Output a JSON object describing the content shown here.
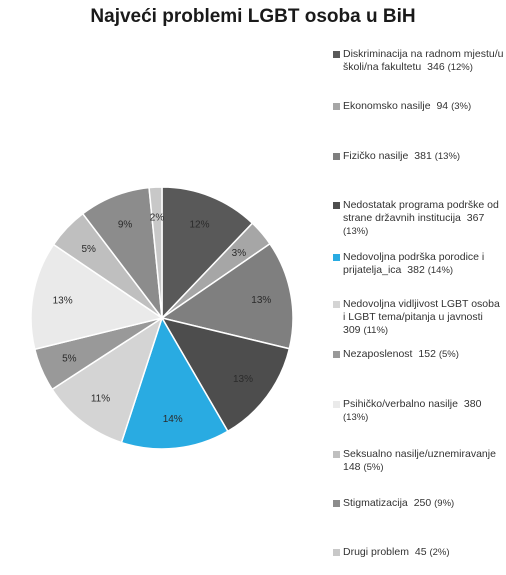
{
  "chart_data": {
    "type": "pie",
    "title": "Najveći problemi LGBT osoba u BiH",
    "slices": [
      {
        "label": "Diskriminacija na radnom mjestu/u školi/na fakultetu",
        "value": 346,
        "percent_label": "(12%)",
        "slice_label": "12%",
        "color": "#595959"
      },
      {
        "label": "Ekonomsko nasilje",
        "value": 94,
        "percent_label": "(3%)",
        "slice_label": "3%",
        "color": "#a6a6a6"
      },
      {
        "label": "Fizičko nasilje",
        "value": 381,
        "percent_label": "(13%)",
        "slice_label": "13%",
        "color": "#7f7f7f"
      },
      {
        "label": "Nedostatak programa podrške od strane državnih institucija",
        "value": 367,
        "percent_label": "(13%)",
        "slice_label": "13%",
        "color": "#4d4d4d"
      },
      {
        "label": "Nedovoljna podrška porodice i prijatelja_ica",
        "value": 382,
        "percent_label": "(14%)",
        "slice_label": "14%",
        "color": "#29abe2"
      },
      {
        "label": "Nedovoljna vidljivost LGBT osoba i LGBT tema/pitanja u javnosti",
        "value": 309,
        "percent_label": "(11%)",
        "slice_label": "11%",
        "color": "#d4d4d4"
      },
      {
        "label": "Nezaposlenost",
        "value": 152,
        "percent_label": "(5%)",
        "slice_label": "5%",
        "color": "#999999"
      },
      {
        "label": "Psihičko/verbalno nasilje",
        "value": 380,
        "percent_label": "(13%)",
        "slice_label": "13%",
        "color": "#eaeaea"
      },
      {
        "label": "Seksualno nasilje/uznemiravanje",
        "value": 148,
        "percent_label": "(5%)",
        "slice_label": "5%",
        "color": "#bfbfbf"
      },
      {
        "label": "Stigmatizacija",
        "value": 250,
        "percent_label": "(9%)",
        "slice_label": "9%",
        "color": "#8c8c8c"
      },
      {
        "label": "Drugi problem",
        "value": 45,
        "percent_label": "(2%)",
        "slice_label": "2%",
        "color": "#c8c8c8"
      }
    ],
    "legend_position": "right"
  }
}
